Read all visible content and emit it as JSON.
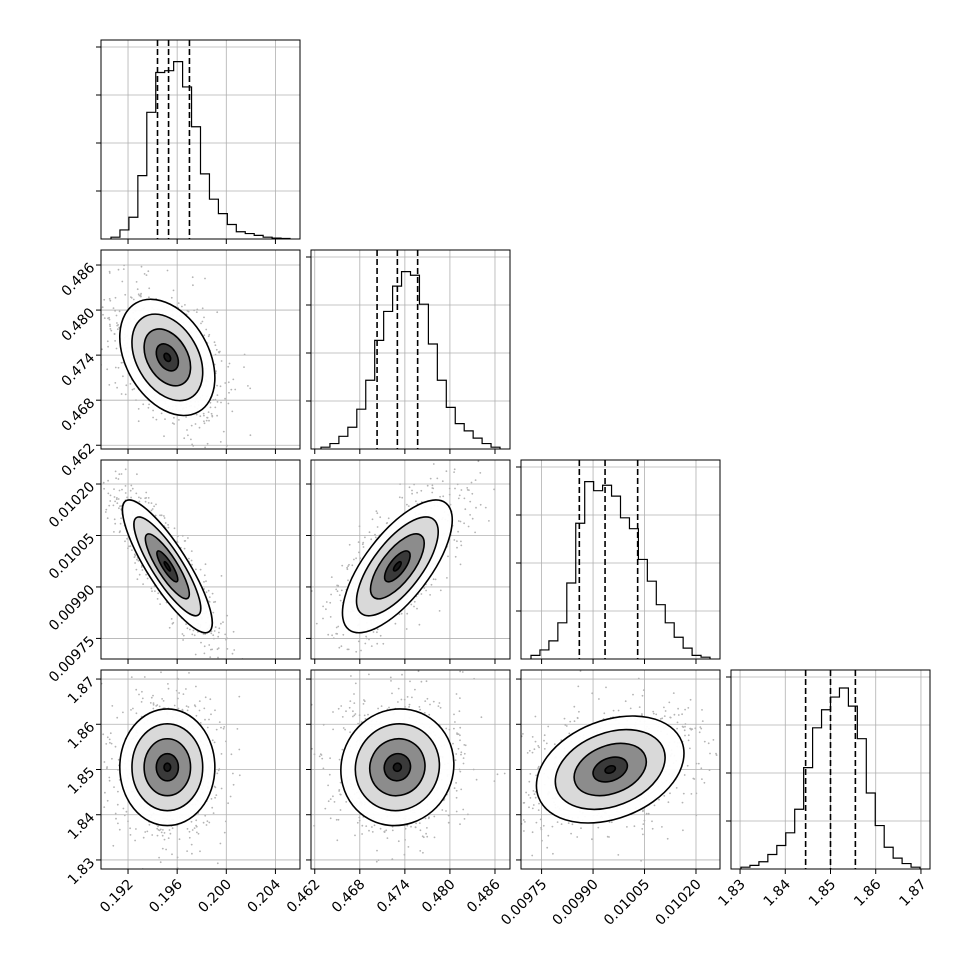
{
  "chart_data": {
    "type": "corner",
    "grid": true,
    "parameters": [
      {
        "range": [
          0.1898,
          0.206
        ],
        "ticks": [
          "0.192",
          "0.196",
          "0.200",
          "0.204"
        ],
        "tick_values": [
          0.192,
          0.196,
          0.2,
          0.204
        ],
        "quantiles": [
          0.1944,
          0.1953,
          0.197
        ],
        "histogram": [
          0.01,
          0.05,
          0.12,
          0.35,
          0.7,
          0.92,
          0.93,
          0.98,
          0.84,
          0.62,
          0.36,
          0.22,
          0.14,
          0.08,
          0.04,
          0.03,
          0.02,
          0.01,
          0.005,
          0.003
        ]
      },
      {
        "range": [
          0.4615,
          0.488
        ],
        "ticks": [
          "0.462",
          "0.468",
          "0.474",
          "0.480",
          "0.486"
        ],
        "tick_values": [
          0.462,
          0.468,
          0.474,
          0.48,
          0.486
        ],
        "quantiles": [
          0.4703,
          0.473,
          0.4757
        ],
        "histogram": [
          0.01,
          0.03,
          0.07,
          0.12,
          0.22,
          0.38,
          0.6,
          0.76,
          0.9,
          0.98,
          0.96,
          0.8,
          0.58,
          0.38,
          0.23,
          0.14,
          0.1,
          0.06,
          0.03,
          0.01
        ]
      },
      {
        "range": [
          0.00969,
          0.01027
        ],
        "ticks": [
          "0.00975",
          "0.00990",
          "0.01005",
          "0.01020"
        ],
        "tick_values": [
          0.00975,
          0.0099,
          0.01005,
          0.0102
        ],
        "quantiles": [
          0.00986,
          0.009935,
          0.01003
        ],
        "histogram": [
          0.02,
          0.05,
          0.1,
          0.2,
          0.42,
          0.75,
          0.98,
          0.93,
          0.96,
          0.9,
          0.78,
          0.72,
          0.55,
          0.43,
          0.3,
          0.2,
          0.12,
          0.06,
          0.02,
          0.01
        ]
      },
      {
        "range": [
          1.828,
          1.872
        ],
        "ticks": [
          "1.83",
          "1.84",
          "1.85",
          "1.86",
          "1.87"
        ],
        "tick_values": [
          1.83,
          1.84,
          1.85,
          1.86,
          1.87
        ],
        "quantiles": [
          1.8445,
          1.85,
          1.8555
        ],
        "histogram": [
          0.01,
          0.02,
          0.04,
          0.08,
          0.13,
          0.2,
          0.33,
          0.56,
          0.78,
          0.88,
          0.95,
          1.0,
          0.9,
          0.72,
          0.42,
          0.24,
          0.12,
          0.06,
          0.03,
          0.01
        ]
      }
    ],
    "pairs": [
      {
        "row": 1,
        "col": 0,
        "center": [
          0.1952,
          0.4737
        ],
        "sd": [
          0.0018,
          0.0036
        ],
        "rho": -0.35
      },
      {
        "row": 2,
        "col": 0,
        "center": [
          0.1952,
          0.00996
        ],
        "sd": [
          0.0017,
          9e-05
        ],
        "rho": -0.85
      },
      {
        "row": 2,
        "col": 1,
        "center": [
          0.473,
          0.00996
        ],
        "sd": [
          0.0034,
          9e-05
        ],
        "rho": 0.7
      },
      {
        "row": 3,
        "col": 0,
        "center": [
          0.1952,
          1.8505
        ],
        "sd": [
          0.0018,
          0.006
        ],
        "rho": 0.0
      },
      {
        "row": 3,
        "col": 1,
        "center": [
          0.473,
          1.8505
        ],
        "sd": [
          0.0035,
          0.006
        ],
        "rho": 0.05
      },
      {
        "row": 3,
        "col": 2,
        "center": [
          0.00995,
          1.85
        ],
        "sd": [
          0.0001,
          0.0055
        ],
        "rho": 0.3
      }
    ]
  }
}
